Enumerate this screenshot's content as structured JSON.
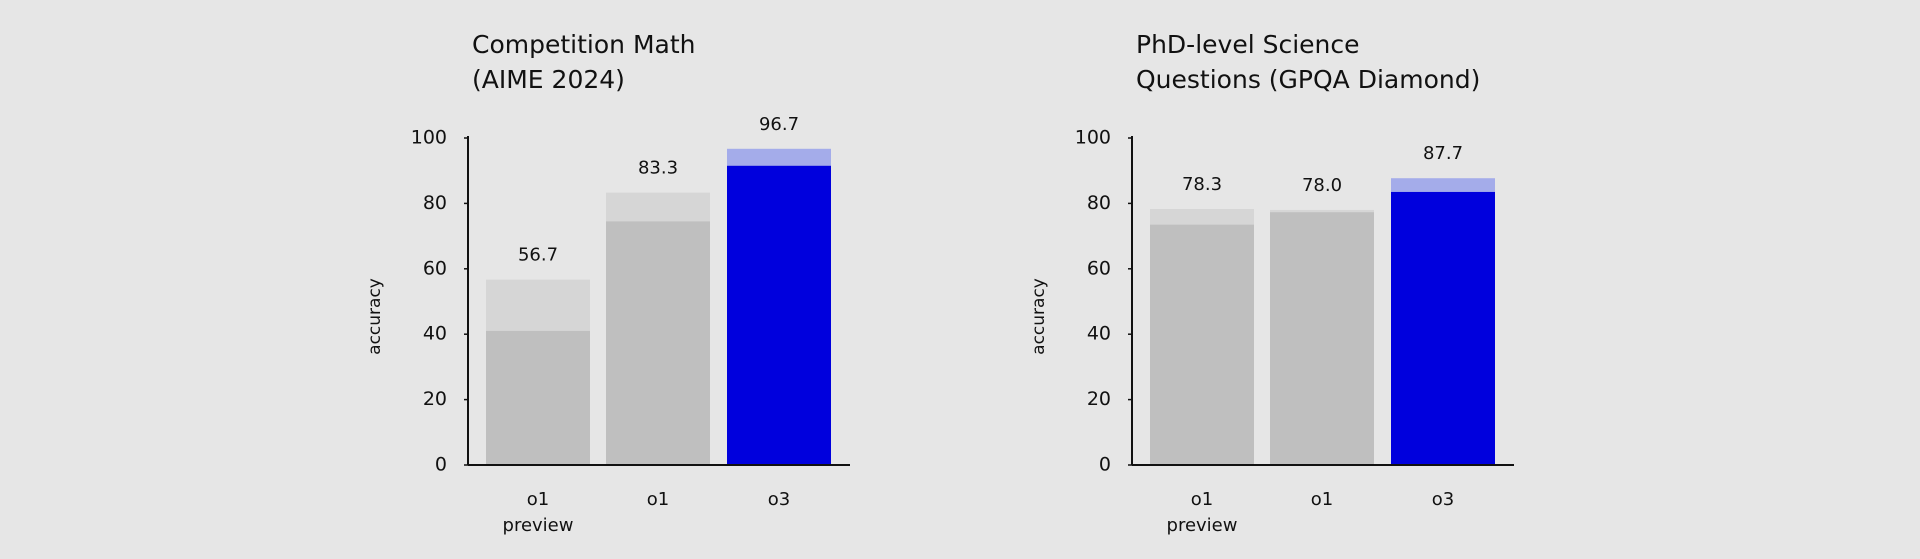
{
  "chart_data": [
    {
      "type": "bar",
      "title": [
        "Competition Math",
        "(AIME 2024)"
      ],
      "ylabel": "accuracy",
      "categories": [
        [
          "o1",
          "preview"
        ],
        [
          "o1"
        ],
        [
          "o3"
        ]
      ],
      "series": [
        {
          "color": [
            "#d6d6d6",
            "#d6d6d6",
            "#a4acea"
          ],
          "values": [
            56.7,
            83.3,
            96.7
          ],
          "value_labels": [
            "56.7",
            "83.3",
            "96.7"
          ]
        },
        {
          "color": [
            "#bfbfbf",
            "#bfbfbf",
            "#0000dd"
          ],
          "values": [
            41,
            74.5,
            91.5
          ]
        }
      ],
      "ylim": [
        0,
        100
      ],
      "yticks": [
        0,
        20,
        40,
        60,
        80,
        100
      ],
      "grid": false
    },
    {
      "type": "bar",
      "title": [
        "PhD-level Science",
        "Questions (GPQA Diamond)"
      ],
      "ylabel": "accuracy",
      "categories": [
        [
          "o1",
          "preview"
        ],
        [
          "o1"
        ],
        [
          "o3"
        ]
      ],
      "series": [
        {
          "color": [
            "#d6d6d6",
            "#d6d6d6",
            "#a4acea"
          ],
          "values": [
            78.3,
            78.0,
            87.7
          ],
          "value_labels": [
            "78.3",
            "78.0",
            "87.7"
          ]
        },
        {
          "color": [
            "#bfbfbf",
            "#bfbfbf",
            "#0000dd"
          ],
          "values": [
            73.5,
            77.3,
            83.5
          ]
        }
      ],
      "ylim": [
        0,
        100
      ],
      "yticks": [
        0,
        20,
        40,
        60,
        80,
        100
      ],
      "grid": false
    }
  ]
}
